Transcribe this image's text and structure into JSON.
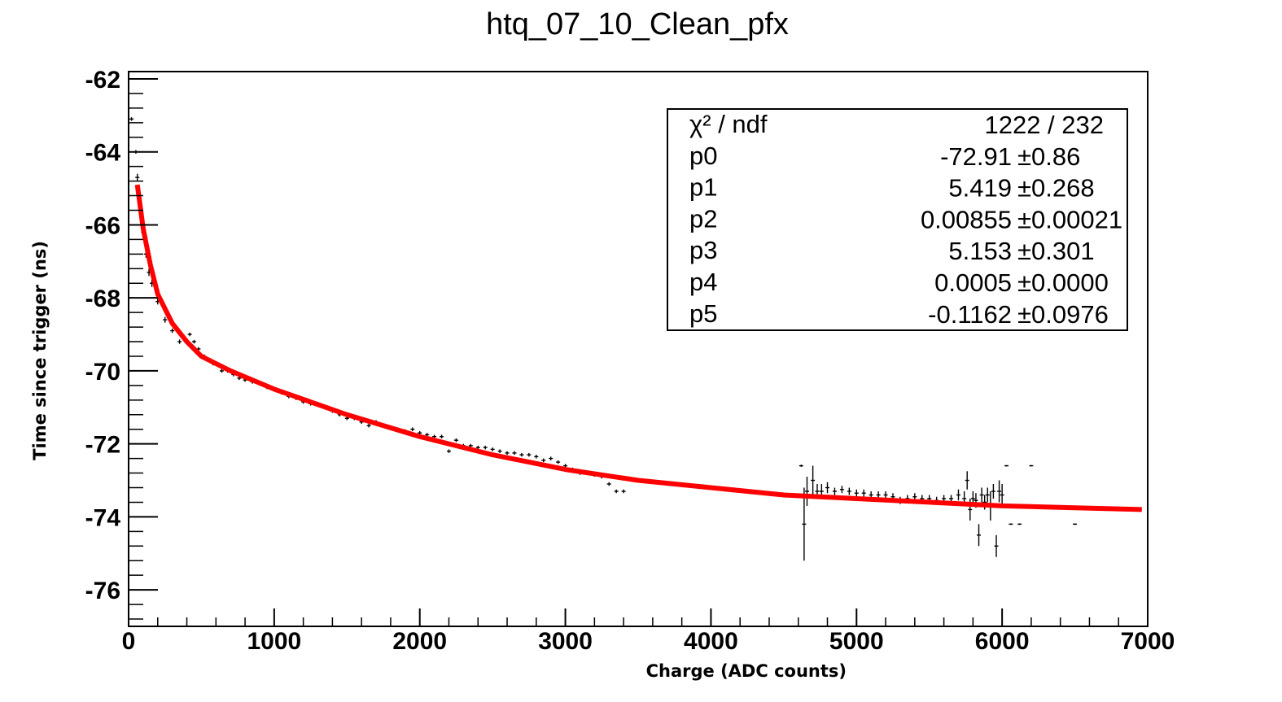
{
  "chart_data": {
    "type": "scatter",
    "title": "htq_07_10_Clean_pfx",
    "xlabel": "Charge (ADC counts)",
    "ylabel": "Time since trigger (ns)",
    "xlim": [
      0,
      7000
    ],
    "ylim": [
      -77,
      -61.8
    ],
    "x_ticks": [
      "0",
      "1000",
      "2000",
      "3000",
      "4000",
      "5000",
      "6000",
      "7000"
    ],
    "y_ticks": [
      "-62",
      "-64",
      "-66",
      "-68",
      "-70",
      "-72",
      "-74",
      "-76"
    ],
    "grid": false,
    "colors": {
      "fit": "#ff0000",
      "points": "#000000",
      "frame": "#000000"
    },
    "fit": {
      "name": "fit",
      "x_range": [
        60,
        6960
      ],
      "x": [
        60,
        100,
        150,
        200,
        300,
        400,
        500,
        700,
        1000,
        1500,
        2000,
        2500,
        3000,
        3500,
        4000,
        4500,
        5000,
        5500,
        6000,
        6500,
        6960
      ],
      "y": [
        -64.9,
        -66.1,
        -67.1,
        -67.9,
        -68.7,
        -69.2,
        -69.6,
        -70.0,
        -70.5,
        -71.2,
        -71.8,
        -72.3,
        -72.7,
        -73.0,
        -73.2,
        -73.4,
        -73.5,
        -73.6,
        -73.7,
        -73.75,
        -73.8
      ]
    },
    "stats": {
      "rows": [
        {
          "label": "χ² / ndf",
          "value": "1222 / 232",
          "error": ""
        },
        {
          "label": "p0",
          "value": "-72.91",
          "error": "±0.86"
        },
        {
          "label": "p1",
          "value": "5.419",
          "error": "±0.268"
        },
        {
          "label": "p2",
          "value": "0.00855",
          "error": "±0.00021"
        },
        {
          "label": "p3",
          "value": "5.153",
          "error": "±0.301"
        },
        {
          "label": "p4",
          "value": "0.0005",
          "error": "±0.0000"
        },
        {
          "label": "p5",
          "value": "-0.1162",
          "error": "±0.0976"
        }
      ]
    },
    "series": [
      {
        "points": [
          [
            20,
            -63.1,
            0.05
          ],
          [
            50,
            -64.0,
            0.05
          ],
          [
            60,
            -64.7,
            0.1
          ],
          [
            80,
            -65.5,
            0.1
          ],
          [
            100,
            -66.2,
            0.1
          ],
          [
            120,
            -66.8,
            0.1
          ],
          [
            140,
            -67.3,
            0.1
          ],
          [
            160,
            -67.6,
            0.1
          ],
          [
            200,
            -68.1,
            0.08
          ],
          [
            250,
            -68.6,
            0.08
          ],
          [
            300,
            -68.9,
            0.06
          ],
          [
            350,
            -69.2,
            0.06
          ],
          [
            400,
            -69.2,
            0.06
          ],
          [
            420,
            -69.0,
            0.05
          ],
          [
            450,
            -69.2,
            0.05
          ],
          [
            480,
            -69.4,
            0.05
          ],
          [
            520,
            -69.6,
            0.05
          ],
          [
            580,
            -69.8,
            0.05
          ],
          [
            640,
            -70.0,
            0.05
          ],
          [
            680,
            -70.0,
            0.05
          ],
          [
            720,
            -70.1,
            0.05
          ],
          [
            760,
            -70.2,
            0.05
          ],
          [
            800,
            -70.25,
            0.05
          ],
          [
            850,
            -70.3,
            0.05
          ],
          [
            900,
            -70.35,
            0.05
          ],
          [
            950,
            -70.45,
            0.05
          ],
          [
            1000,
            -70.5,
            0.05
          ],
          [
            1050,
            -70.6,
            0.05
          ],
          [
            1100,
            -70.7,
            0.05
          ],
          [
            1150,
            -70.75,
            0.05
          ],
          [
            1200,
            -70.85,
            0.05
          ],
          [
            1250,
            -70.9,
            0.05
          ],
          [
            1300,
            -70.9,
            0.05
          ],
          [
            1350,
            -71.0,
            0.05
          ],
          [
            1400,
            -71.1,
            0.05
          ],
          [
            1450,
            -71.2,
            0.05
          ],
          [
            1500,
            -71.3,
            0.05
          ],
          [
            1550,
            -71.3,
            0.05
          ],
          [
            1600,
            -71.4,
            0.05
          ],
          [
            1650,
            -71.5,
            0.05
          ],
          [
            1700,
            -71.4,
            0.05
          ],
          [
            1750,
            -71.5,
            0.05
          ],
          [
            1800,
            -71.55,
            0.05
          ],
          [
            1850,
            -71.6,
            0.05
          ],
          [
            1900,
            -71.65,
            0.05
          ],
          [
            1950,
            -71.6,
            0.05
          ],
          [
            2000,
            -71.7,
            0.05
          ],
          [
            2050,
            -71.75,
            0.05
          ],
          [
            2100,
            -71.8,
            0.05
          ],
          [
            2150,
            -71.8,
            0.05
          ],
          [
            2200,
            -72.2,
            0.05
          ],
          [
            2250,
            -71.9,
            0.05
          ],
          [
            2300,
            -72.05,
            0.05
          ],
          [
            2350,
            -72.05,
            0.05
          ],
          [
            2400,
            -72.1,
            0.05
          ],
          [
            2450,
            -72.1,
            0.05
          ],
          [
            2500,
            -72.15,
            0.05
          ],
          [
            2550,
            -72.2,
            0.05
          ],
          [
            2600,
            -72.25,
            0.05
          ],
          [
            2650,
            -72.25,
            0.05
          ],
          [
            2700,
            -72.3,
            0.05
          ],
          [
            2750,
            -72.3,
            0.05
          ],
          [
            2800,
            -72.35,
            0.05
          ],
          [
            2850,
            -72.45,
            0.05
          ],
          [
            2900,
            -72.4,
            0.05
          ],
          [
            2950,
            -72.5,
            0.05
          ],
          [
            3000,
            -72.6,
            0.05
          ],
          [
            3050,
            -72.7,
            0.05
          ],
          [
            3100,
            -72.8,
            0.05
          ],
          [
            3150,
            -72.8,
            0.05
          ],
          [
            3200,
            -72.85,
            0.05
          ],
          [
            3250,
            -72.9,
            0.05
          ],
          [
            3300,
            -73.1,
            0.05
          ],
          [
            3350,
            -73.3,
            0.05
          ],
          [
            3400,
            -73.3,
            0.05
          ],
          [
            4620,
            -72.6,
            0.03
          ],
          [
            4640,
            -74.2,
            1.0
          ],
          [
            4660,
            -73.3,
            0.4
          ],
          [
            4700,
            -73.0,
            0.4
          ],
          [
            4730,
            -73.3,
            0.2
          ],
          [
            4760,
            -73.3,
            0.2
          ],
          [
            4800,
            -73.2,
            0.15
          ],
          [
            4850,
            -73.3,
            0.1
          ],
          [
            4900,
            -73.25,
            0.1
          ],
          [
            4950,
            -73.3,
            0.1
          ],
          [
            5000,
            -73.35,
            0.1
          ],
          [
            5050,
            -73.35,
            0.1
          ],
          [
            5100,
            -73.4,
            0.1
          ],
          [
            5150,
            -73.4,
            0.1
          ],
          [
            5200,
            -73.4,
            0.1
          ],
          [
            5250,
            -73.45,
            0.1
          ],
          [
            5300,
            -73.55,
            0.1
          ],
          [
            5350,
            -73.5,
            0.1
          ],
          [
            5400,
            -73.45,
            0.1
          ],
          [
            5450,
            -73.5,
            0.1
          ],
          [
            5500,
            -73.5,
            0.1
          ],
          [
            5550,
            -73.55,
            0.1
          ],
          [
            5600,
            -73.5,
            0.1
          ],
          [
            5650,
            -73.5,
            0.1
          ],
          [
            5700,
            -73.4,
            0.15
          ],
          [
            5740,
            -73.5,
            0.2
          ],
          [
            5760,
            -73.0,
            0.25
          ],
          [
            5780,
            -73.8,
            0.3
          ],
          [
            5800,
            -73.5,
            0.2
          ],
          [
            5820,
            -73.55,
            0.2
          ],
          [
            5840,
            -74.5,
            0.3
          ],
          [
            5860,
            -73.4,
            0.2
          ],
          [
            5880,
            -73.6,
            0.2
          ],
          [
            5900,
            -73.4,
            0.2
          ],
          [
            5920,
            -73.7,
            0.4
          ],
          [
            5940,
            -73.3,
            0.2
          ],
          [
            5960,
            -74.8,
            0.3
          ],
          [
            5980,
            -73.3,
            0.3
          ],
          [
            6000,
            -73.4,
            0.3
          ],
          [
            6030,
            -72.6,
            0.02
          ],
          [
            6060,
            -74.2,
            0.02
          ],
          [
            6120,
            -74.2,
            0.02
          ],
          [
            6200,
            -72.6,
            0.02
          ],
          [
            6500,
            -74.2,
            0.02
          ]
        ]
      }
    ]
  }
}
